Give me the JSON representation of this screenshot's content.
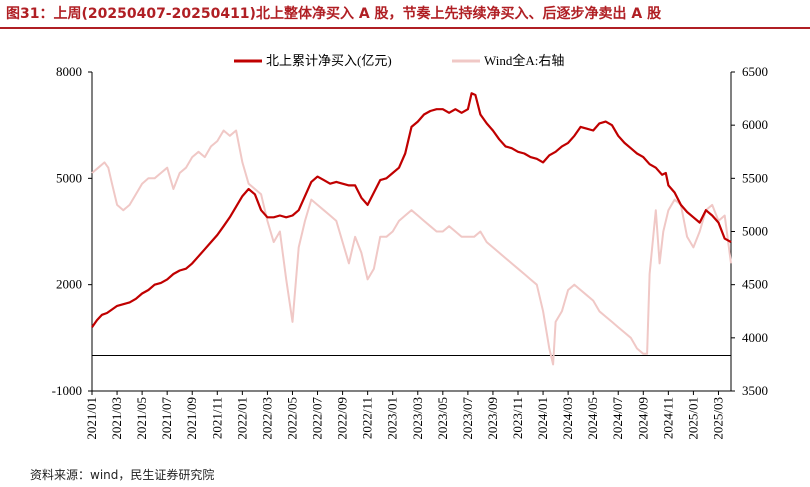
{
  "title": "图31：上周(20250407-20250411)北上整体净买入 A 股，节奏上先持续净买入、后逐步净卖出 A 股",
  "source": "资料来源：wind，民生证券研究院",
  "chart_data": {
    "type": "line",
    "left_axis": {
      "min": -1000,
      "max": 8000,
      "ticks": [
        -1000,
        2000,
        5000,
        8000
      ]
    },
    "right_axis": {
      "min": 3500,
      "max": 6500,
      "ticks": [
        3500,
        4000,
        4500,
        5000,
        5500,
        6000,
        6500
      ]
    },
    "x_range": [
      0,
      51
    ],
    "x_ticks": [
      {
        "i": 0,
        "label": "2021/01"
      },
      {
        "i": 2,
        "label": "2021/03"
      },
      {
        "i": 4,
        "label": "2021/05"
      },
      {
        "i": 6,
        "label": "2021/07"
      },
      {
        "i": 8,
        "label": "2021/09"
      },
      {
        "i": 10,
        "label": "2021/11"
      },
      {
        "i": 12,
        "label": "2022/01"
      },
      {
        "i": 14,
        "label": "2022/03"
      },
      {
        "i": 16,
        "label": "2022/05"
      },
      {
        "i": 18,
        "label": "2022/07"
      },
      {
        "i": 20,
        "label": "2022/09"
      },
      {
        "i": 22,
        "label": "2022/11"
      },
      {
        "i": 24,
        "label": "2023/01"
      },
      {
        "i": 26,
        "label": "2023/03"
      },
      {
        "i": 28,
        "label": "2023/05"
      },
      {
        "i": 30,
        "label": "2023/07"
      },
      {
        "i": 32,
        "label": "2023/09"
      },
      {
        "i": 34,
        "label": "2023/11"
      },
      {
        "i": 36,
        "label": "2024/01"
      },
      {
        "i": 38,
        "label": "2024/03"
      },
      {
        "i": 40,
        "label": "2024/05"
      },
      {
        "i": 42,
        "label": "2024/07"
      },
      {
        "i": 44,
        "label": "2024/09"
      },
      {
        "i": 46,
        "label": "2024/11"
      },
      {
        "i": 48,
        "label": "2025/01"
      },
      {
        "i": 50,
        "label": "2025/03"
      }
    ],
    "series": [
      {
        "name": "北上累计净买入(亿元)",
        "axis": "left",
        "color": "#c00000",
        "points": [
          [
            0,
            800
          ],
          [
            0.4,
            1000
          ],
          [
            0.8,
            1150
          ],
          [
            1.2,
            1200
          ],
          [
            1.6,
            1300
          ],
          [
            2,
            1400
          ],
          [
            2.5,
            1450
          ],
          [
            3,
            1500
          ],
          [
            3.5,
            1600
          ],
          [
            4,
            1750
          ],
          [
            4.5,
            1850
          ],
          [
            5,
            2000
          ],
          [
            5.5,
            2050
          ],
          [
            6,
            2150
          ],
          [
            6.5,
            2300
          ],
          [
            7,
            2400
          ],
          [
            7.5,
            2450
          ],
          [
            8,
            2600
          ],
          [
            8.5,
            2800
          ],
          [
            9,
            3000
          ],
          [
            9.5,
            3200
          ],
          [
            10,
            3400
          ],
          [
            10.5,
            3650
          ],
          [
            11,
            3900
          ],
          [
            11.5,
            4200
          ],
          [
            12,
            4500
          ],
          [
            12.5,
            4700
          ],
          [
            13,
            4550
          ],
          [
            13.5,
            4100
          ],
          [
            14,
            3900
          ],
          [
            14.5,
            3900
          ],
          [
            15,
            3950
          ],
          [
            15.5,
            3900
          ],
          [
            16,
            3950
          ],
          [
            16.5,
            4100
          ],
          [
            17,
            4500
          ],
          [
            17.5,
            4900
          ],
          [
            18,
            5050
          ],
          [
            18.5,
            4950
          ],
          [
            19,
            4850
          ],
          [
            19.5,
            4900
          ],
          [
            20,
            4850
          ],
          [
            20.5,
            4800
          ],
          [
            21,
            4800
          ],
          [
            21.5,
            4450
          ],
          [
            22,
            4250
          ],
          [
            22.5,
            4600
          ],
          [
            23,
            4950
          ],
          [
            23.5,
            5000
          ],
          [
            24,
            5150
          ],
          [
            24.5,
            5300
          ],
          [
            25,
            5700
          ],
          [
            25.5,
            6450
          ],
          [
            26,
            6600
          ],
          [
            26.5,
            6800
          ],
          [
            27,
            6900
          ],
          [
            27.5,
            6950
          ],
          [
            28,
            6950
          ],
          [
            28.5,
            6850
          ],
          [
            29,
            6950
          ],
          [
            29.5,
            6850
          ],
          [
            30,
            6950
          ],
          [
            30.3,
            7400
          ],
          [
            30.6,
            7350
          ],
          [
            31,
            6800
          ],
          [
            31.5,
            6550
          ],
          [
            32,
            6350
          ],
          [
            32.5,
            6100
          ],
          [
            33,
            5900
          ],
          [
            33.5,
            5850
          ],
          [
            34,
            5750
          ],
          [
            34.5,
            5700
          ],
          [
            35,
            5600
          ],
          [
            35.5,
            5550
          ],
          [
            36,
            5450
          ],
          [
            36.5,
            5650
          ],
          [
            37,
            5750
          ],
          [
            37.5,
            5900
          ],
          [
            38,
            6000
          ],
          [
            38.5,
            6200
          ],
          [
            39,
            6450
          ],
          [
            39.5,
            6400
          ],
          [
            40,
            6350
          ],
          [
            40.5,
            6550
          ],
          [
            41,
            6600
          ],
          [
            41.5,
            6500
          ],
          [
            42,
            6200
          ],
          [
            42.5,
            6000
          ],
          [
            43,
            5850
          ],
          [
            43.5,
            5700
          ],
          [
            44,
            5600
          ],
          [
            44.5,
            5400
          ],
          [
            45,
            5300
          ],
          [
            45.5,
            5100
          ],
          [
            45.8,
            5150
          ],
          [
            46,
            4800
          ],
          [
            46.5,
            4600
          ],
          [
            47,
            4250
          ],
          [
            47.5,
            4050
          ],
          [
            48,
            3900
          ],
          [
            48.5,
            3750
          ],
          [
            49,
            4100
          ],
          [
            49.5,
            3950
          ],
          [
            50,
            3750
          ],
          [
            50.5,
            3300
          ],
          [
            51,
            3200
          ]
        ]
      },
      {
        "name": "Wind全A:右轴",
        "axis": "right",
        "color": "#f0c8c6",
        "points": [
          [
            0,
            5550
          ],
          [
            0.5,
            5600
          ],
          [
            1,
            5650
          ],
          [
            1.3,
            5600
          ],
          [
            1.6,
            5450
          ],
          [
            2,
            5250
          ],
          [
            2.5,
            5200
          ],
          [
            3,
            5250
          ],
          [
            3.5,
            5350
          ],
          [
            4,
            5450
          ],
          [
            4.5,
            5500
          ],
          [
            5,
            5500
          ],
          [
            5.5,
            5550
          ],
          [
            6,
            5600
          ],
          [
            6.5,
            5400
          ],
          [
            7,
            5550
          ],
          [
            7.5,
            5600
          ],
          [
            8,
            5700
          ],
          [
            8.5,
            5750
          ],
          [
            9,
            5700
          ],
          [
            9.5,
            5800
          ],
          [
            10,
            5850
          ],
          [
            10.5,
            5950
          ],
          [
            11,
            5900
          ],
          [
            11.5,
            5950
          ],
          [
            12,
            5650
          ],
          [
            12.5,
            5450
          ],
          [
            13,
            5400
          ],
          [
            13.5,
            5350
          ],
          [
            14,
            5100
          ],
          [
            14.5,
            4900
          ],
          [
            15,
            5000
          ],
          [
            15.5,
            4550
          ],
          [
            16,
            4150
          ],
          [
            16.5,
            4850
          ],
          [
            17,
            5100
          ],
          [
            17.5,
            5300
          ],
          [
            18,
            5250
          ],
          [
            18.5,
            5200
          ],
          [
            19,
            5150
          ],
          [
            19.5,
            5100
          ],
          [
            20,
            4900
          ],
          [
            20.5,
            4700
          ],
          [
            21,
            4950
          ],
          [
            21.5,
            4800
          ],
          [
            22,
            4550
          ],
          [
            22.5,
            4650
          ],
          [
            23,
            4950
          ],
          [
            23.5,
            4950
          ],
          [
            24,
            5000
          ],
          [
            24.5,
            5100
          ],
          [
            25,
            5150
          ],
          [
            25.5,
            5200
          ],
          [
            26,
            5150
          ],
          [
            26.5,
            5100
          ],
          [
            27,
            5050
          ],
          [
            27.5,
            5000
          ],
          [
            28,
            5000
          ],
          [
            28.5,
            5050
          ],
          [
            29,
            5000
          ],
          [
            29.5,
            4950
          ],
          [
            30,
            4950
          ],
          [
            30.5,
            4950
          ],
          [
            31,
            5000
          ],
          [
            31.5,
            4900
          ],
          [
            32,
            4850
          ],
          [
            32.5,
            4800
          ],
          [
            33,
            4750
          ],
          [
            33.5,
            4700
          ],
          [
            34,
            4650
          ],
          [
            34.5,
            4600
          ],
          [
            35,
            4550
          ],
          [
            35.5,
            4500
          ],
          [
            36,
            4250
          ],
          [
            36.5,
            3900
          ],
          [
            36.8,
            3750
          ],
          [
            37,
            4150
          ],
          [
            37.5,
            4250
          ],
          [
            38,
            4450
          ],
          [
            38.5,
            4500
          ],
          [
            39,
            4450
          ],
          [
            39.5,
            4400
          ],
          [
            40,
            4350
          ],
          [
            40.5,
            4250
          ],
          [
            41,
            4200
          ],
          [
            41.5,
            4150
          ],
          [
            42,
            4100
          ],
          [
            42.5,
            4050
          ],
          [
            43,
            4000
          ],
          [
            43.5,
            3900
          ],
          [
            44,
            3850
          ],
          [
            44.3,
            3850
          ],
          [
            44.5,
            4600
          ],
          [
            45,
            5200
          ],
          [
            45.3,
            4700
          ],
          [
            45.6,
            5000
          ],
          [
            46,
            5200
          ],
          [
            46.5,
            5300
          ],
          [
            47,
            5250
          ],
          [
            47.5,
            4950
          ],
          [
            48,
            4850
          ],
          [
            48.5,
            5000
          ],
          [
            49,
            5200
          ],
          [
            49.5,
            5250
          ],
          [
            50,
            5100
          ],
          [
            50.5,
            5150
          ],
          [
            51,
            4700
          ]
        ]
      }
    ]
  }
}
